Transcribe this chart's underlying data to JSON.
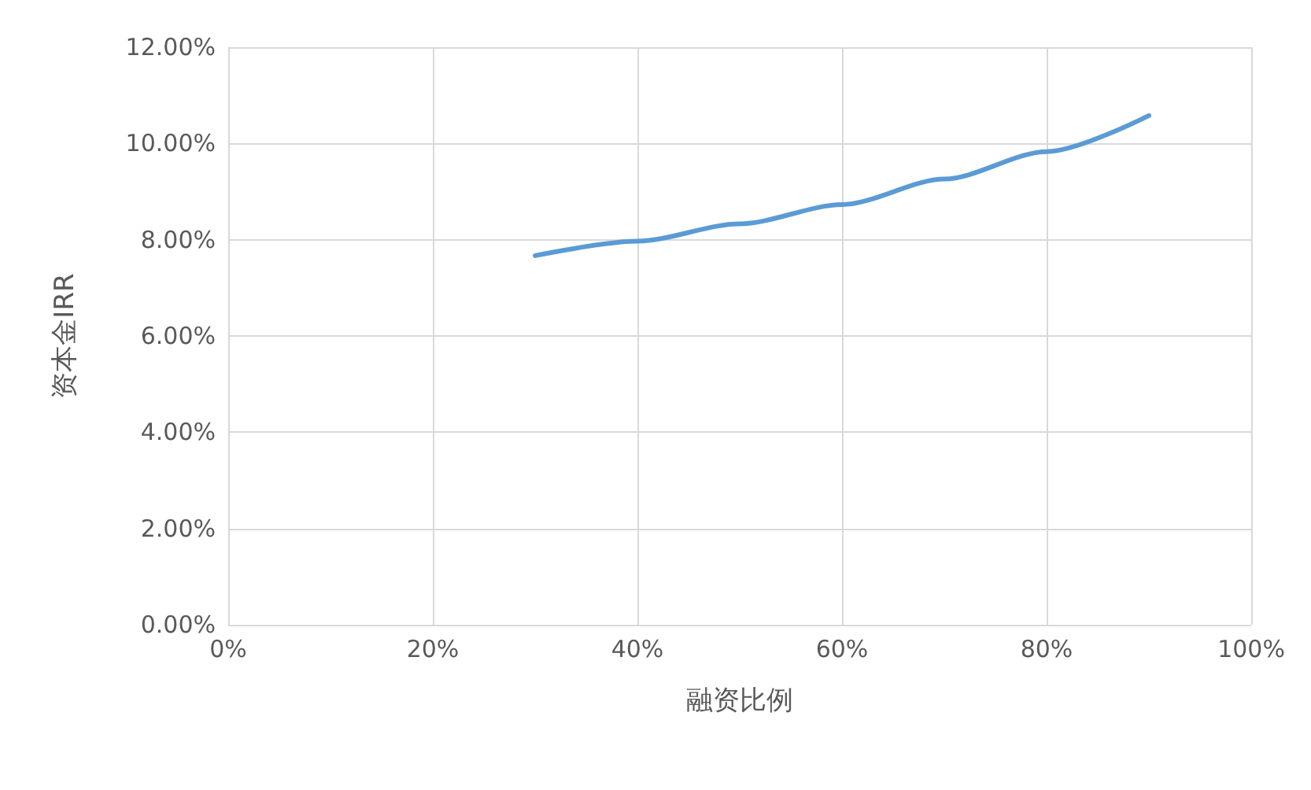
{
  "chart_data": {
    "type": "line",
    "xlabel": "融资比例",
    "ylabel": "资本金IRR",
    "x": [
      30,
      40,
      50,
      60,
      70,
      80,
      90
    ],
    "series": [
      {
        "color": "#5b9bd5",
        "values": [
          7.67,
          7.97,
          8.33,
          8.73,
          9.26,
          9.83,
          10.58
        ]
      }
    ],
    "xlim": [
      0,
      100
    ],
    "xticks": [
      {
        "value": 0,
        "label": "0%"
      },
      {
        "value": 20,
        "label": "20%"
      },
      {
        "value": 40,
        "label": "40%"
      },
      {
        "value": 60,
        "label": "60%"
      },
      {
        "value": 80,
        "label": "80%"
      },
      {
        "value": 100,
        "label": "100%"
      }
    ],
    "ylim": [
      0,
      12
    ],
    "yticks": [
      {
        "value": 0,
        "label": "0.00%"
      },
      {
        "value": 2,
        "label": "2.00%"
      },
      {
        "value": 4,
        "label": "4.00%"
      },
      {
        "value": 6,
        "label": "6.00%"
      },
      {
        "value": 8,
        "label": "8.00%"
      },
      {
        "value": 10,
        "label": "10.00%"
      },
      {
        "value": 12,
        "label": "12.00%"
      }
    ],
    "grid": true,
    "marker": "none",
    "line_style": "solid"
  }
}
